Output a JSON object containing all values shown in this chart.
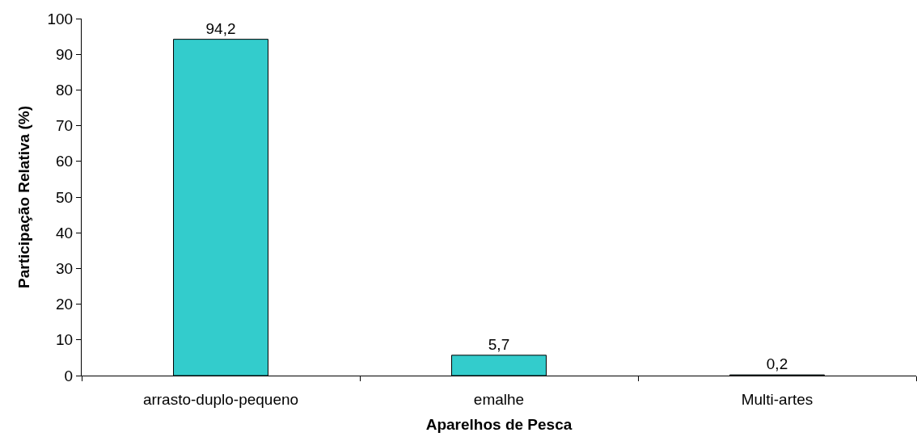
{
  "chart_data": {
    "type": "bar",
    "xlabel": "Aparelhos de Pesca",
    "ylabel": "Participação Relativa (%)",
    "categories": [
      "arrasto-duplo-pequeno",
      "emalhe",
      "Multi-artes"
    ],
    "values": [
      94.2,
      5.7,
      0.2
    ],
    "value_labels": [
      "94,2",
      "5,7",
      "0,2"
    ],
    "color": "#33cccc",
    "ylim": [
      0,
      100
    ],
    "yticks": [
      0,
      10,
      20,
      30,
      40,
      50,
      60,
      70,
      80,
      90,
      100
    ]
  }
}
